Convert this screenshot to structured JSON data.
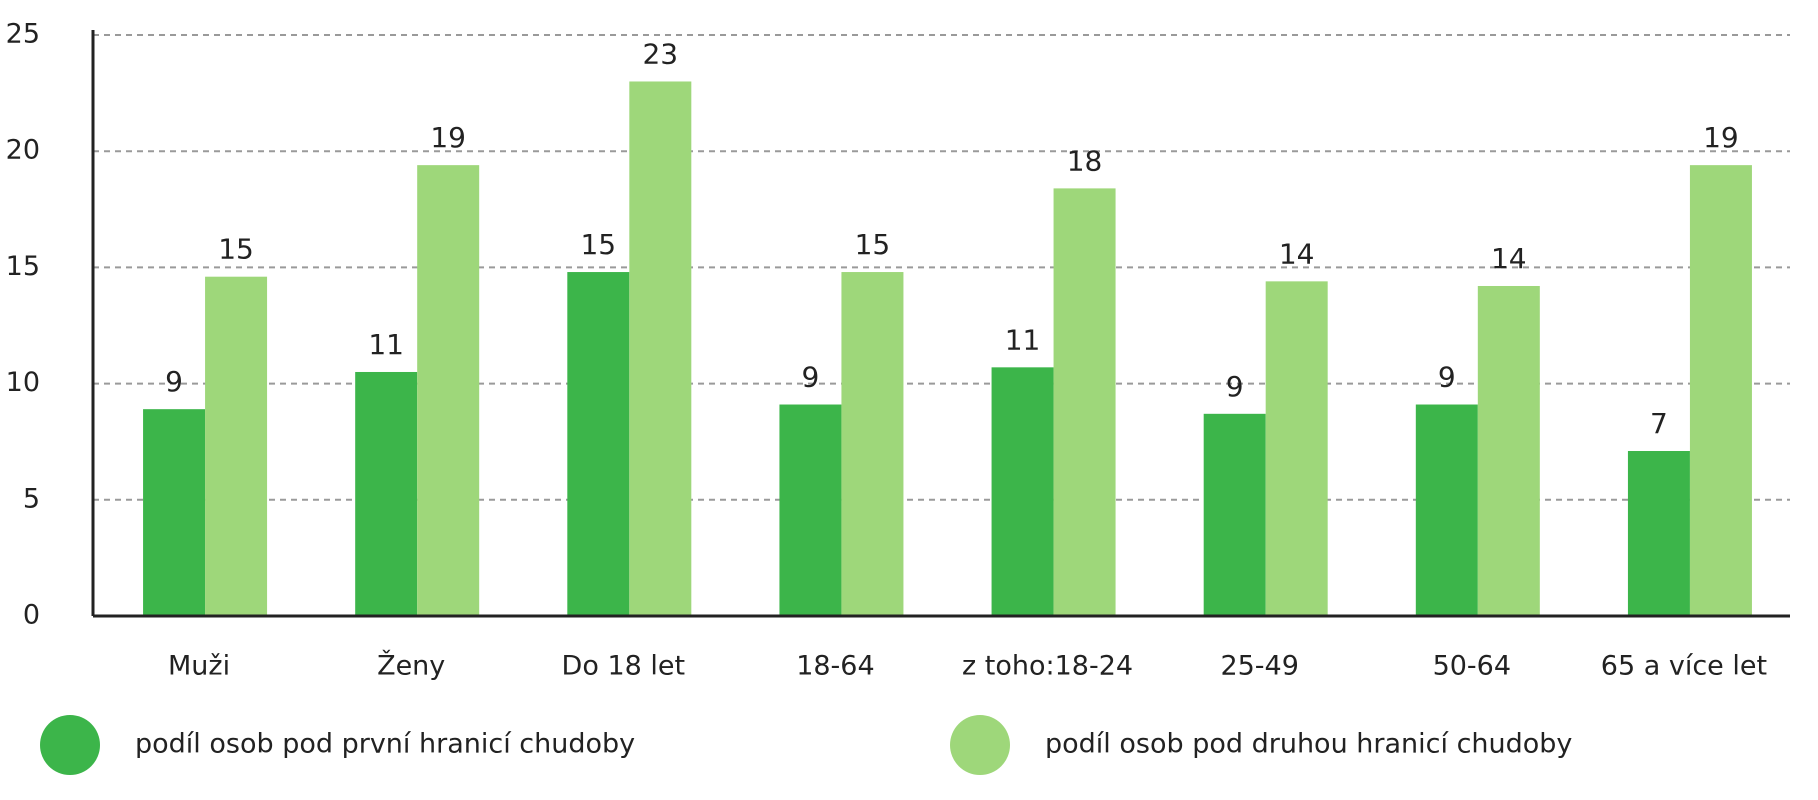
{
  "chart_data": {
    "type": "bar",
    "categories": [
      "Muži",
      "Ženy",
      "Do 18 let",
      "18-64",
      "z toho:18-24",
      "25-49",
      "50-64",
      "65 a více let"
    ],
    "series": [
      {
        "name": "podíl osob pod první hranicí chudoby",
        "color": "#3cb54a",
        "values": [
          8.9,
          10.5,
          14.8,
          9.1,
          10.7,
          8.7,
          9.1,
          7.1
        ],
        "value_labels": [
          "9",
          "11",
          "15",
          "9",
          "11",
          "9",
          "9",
          "7"
        ]
      },
      {
        "name": "podíl osob pod druhou hranicí chudoby",
        "color": "#9ed77a",
        "values": [
          14.6,
          19.4,
          23.0,
          14.8,
          18.4,
          14.4,
          14.2,
          19.4
        ],
        "value_labels": [
          "15",
          "19",
          "23",
          "15",
          "18",
          "14",
          "14",
          "19"
        ]
      }
    ],
    "ylim": [
      0,
      25
    ],
    "yticks": [
      0,
      5,
      10,
      15,
      20,
      25
    ],
    "grid": true,
    "legend": "bottom"
  }
}
